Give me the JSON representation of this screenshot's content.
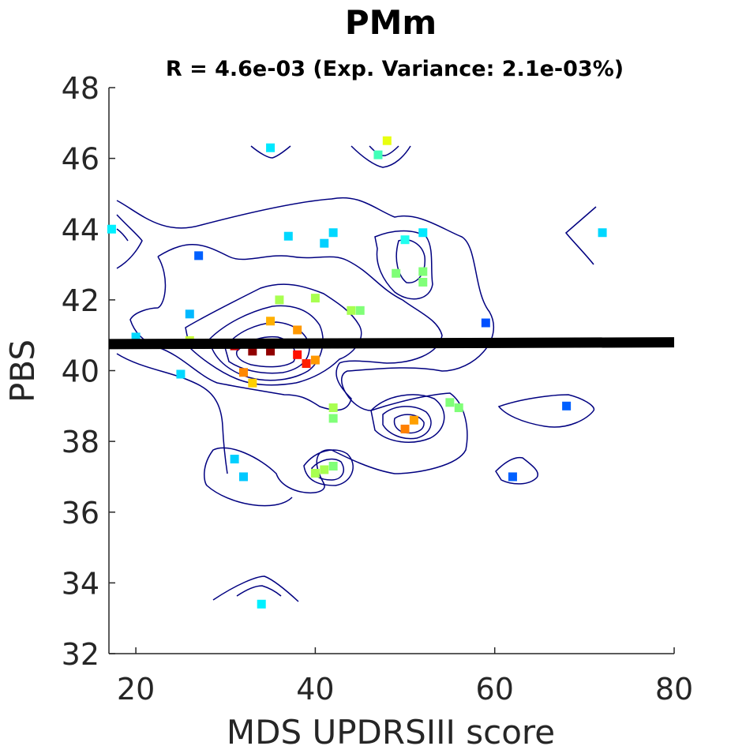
{
  "chart_data": {
    "type": "scatter",
    "title": "PMm",
    "subtitle": "R = 4.6e-03 (Exp. Variance: 2.1e-03%)",
    "xlabel": "MDS UPDRSIII score",
    "ylabel": "PBS",
    "xlim": [
      17,
      80
    ],
    "ylim": [
      32,
      48
    ],
    "xticks": [
      20,
      40,
      60,
      80
    ],
    "yticks": [
      32,
      34,
      36,
      38,
      40,
      42,
      44,
      46,
      48
    ],
    "grid": false,
    "regression_line": {
      "x": [
        17,
        80
      ],
      "y": [
        40.75,
        40.8
      ],
      "color": "#000000"
    },
    "contour_color": "#000080",
    "points": [
      {
        "x": 17.3,
        "y": 44.0,
        "color": "#00f0ff"
      },
      {
        "x": 27,
        "y": 43.25,
        "color": "#0060ff"
      },
      {
        "x": 35,
        "y": 46.3,
        "color": "#00e8ff"
      },
      {
        "x": 37,
        "y": 43.8,
        "color": "#00d8ff"
      },
      {
        "x": 41,
        "y": 43.6,
        "color": "#00d0ff"
      },
      {
        "x": 42,
        "y": 43.9,
        "color": "#00d8ff"
      },
      {
        "x": 47,
        "y": 46.1,
        "color": "#40ffb8"
      },
      {
        "x": 48,
        "y": 46.5,
        "color": "#e8ff10"
      },
      {
        "x": 50,
        "y": 43.7,
        "color": "#20fff0"
      },
      {
        "x": 52,
        "y": 43.9,
        "color": "#00e8ff"
      },
      {
        "x": 49,
        "y": 42.75,
        "color": "#80ff78"
      },
      {
        "x": 52,
        "y": 42.8,
        "color": "#80ff78"
      },
      {
        "x": 52,
        "y": 42.5,
        "color": "#80ff78"
      },
      {
        "x": 72,
        "y": 43.9,
        "color": "#00d8ff"
      },
      {
        "x": 26,
        "y": 41.6,
        "color": "#00b8ff"
      },
      {
        "x": 20,
        "y": 40.95,
        "color": "#00d8ff"
      },
      {
        "x": 23,
        "y": 40.75,
        "color": "#80ff78"
      },
      {
        "x": 26,
        "y": 40.85,
        "color": "#c8ff38"
      },
      {
        "x": 36,
        "y": 42.0,
        "color": "#a8ff50"
      },
      {
        "x": 40,
        "y": 42.05,
        "color": "#a8ff50"
      },
      {
        "x": 44,
        "y": 41.7,
        "color": "#a8ff50"
      },
      {
        "x": 45,
        "y": 41.7,
        "color": "#80ff78"
      },
      {
        "x": 35,
        "y": 41.4,
        "color": "#ffb000"
      },
      {
        "x": 38,
        "y": 41.15,
        "color": "#ff9800"
      },
      {
        "x": 59,
        "y": 41.35,
        "color": "#0050ff"
      },
      {
        "x": 31,
        "y": 40.7,
        "color": "#c00000"
      },
      {
        "x": 33,
        "y": 40.55,
        "color": "#900000"
      },
      {
        "x": 35,
        "y": 40.55,
        "color": "#900000"
      },
      {
        "x": 38,
        "y": 40.45,
        "color": "#ff1000"
      },
      {
        "x": 39,
        "y": 40.2,
        "color": "#ff2000"
      },
      {
        "x": 40,
        "y": 40.3,
        "color": "#ff9800"
      },
      {
        "x": 25,
        "y": 39.9,
        "color": "#00d8ff"
      },
      {
        "x": 32,
        "y": 39.95,
        "color": "#ff8800"
      },
      {
        "x": 33,
        "y": 39.65,
        "color": "#ffd000"
      },
      {
        "x": 42,
        "y": 38.95,
        "color": "#a8ff50"
      },
      {
        "x": 42,
        "y": 38.65,
        "color": "#80ff78"
      },
      {
        "x": 51,
        "y": 38.6,
        "color": "#ffa000"
      },
      {
        "x": 50,
        "y": 38.35,
        "color": "#ff8000"
      },
      {
        "x": 55,
        "y": 39.1,
        "color": "#80ff78"
      },
      {
        "x": 56,
        "y": 38.95,
        "color": "#80ff78"
      },
      {
        "x": 68,
        "y": 39.0,
        "color": "#0060ff"
      },
      {
        "x": 31,
        "y": 37.5,
        "color": "#00d0ff"
      },
      {
        "x": 32,
        "y": 37.0,
        "color": "#00c8ff"
      },
      {
        "x": 40,
        "y": 37.1,
        "color": "#a8ff50"
      },
      {
        "x": 41,
        "y": 37.2,
        "color": "#a8ff50"
      },
      {
        "x": 42,
        "y": 37.3,
        "color": "#80ff78"
      },
      {
        "x": 62,
        "y": 37.0,
        "color": "#0060ff"
      },
      {
        "x": 34,
        "y": 33.4,
        "color": "#00f0ff"
      }
    ]
  }
}
